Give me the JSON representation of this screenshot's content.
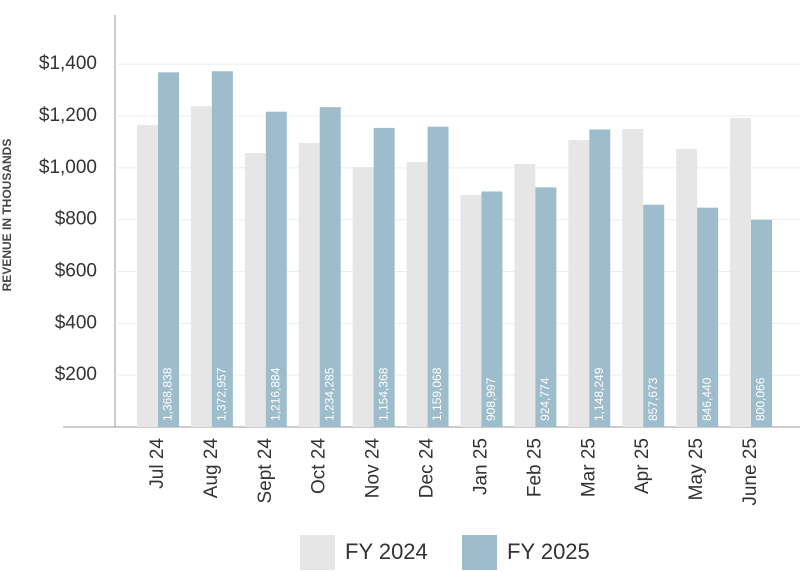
{
  "chart_data": {
    "type": "bar",
    "y_label": "REVENUE IN THOUSANDS",
    "categories": [
      "Jul 24",
      "Aug 24",
      "Sept 24",
      "Oct 24",
      "Nov 24",
      "Dec 24",
      "Jan 25",
      "Feb 25",
      "Mar 25",
      "Apr 25",
      "May 25",
      "June 25"
    ],
    "series": [
      {
        "name": "FY 2024",
        "color": "#e6e6e6",
        "values": [
          1165,
          1238,
          1057,
          1096,
          1003,
          1022,
          895,
          1015,
          1107,
          1150,
          1073,
          1192
        ]
      },
      {
        "name": "FY 2025",
        "color": "#9dbdcc",
        "values": [
          1368.838,
          1372.957,
          1216.884,
          1234.285,
          1154.368,
          1159.068,
          908.997,
          924.774,
          1148.249,
          857.673,
          846.44,
          800.066
        ],
        "value_labels": [
          "1,368,838",
          "1,372,957",
          "1,216,884",
          "1,234,285",
          "1,154,368",
          "1,159,068",
          "908,997",
          "924,774",
          "1,148,249",
          "857,673",
          "846,440",
          "800,066"
        ]
      }
    ],
    "ylim": [
      0,
      1590
    ],
    "yticks": [
      {
        "value": 200,
        "label": "$200"
      },
      {
        "value": 400,
        "label": "$400"
      },
      {
        "value": 600,
        "label": "$600"
      },
      {
        "value": 800,
        "label": "$800"
      },
      {
        "value": 1000,
        "label": "$1,000"
      },
      {
        "value": 1200,
        "label": "$1,200"
      },
      {
        "value": 1400,
        "label": "$1,400"
      }
    ],
    "grid": true
  }
}
